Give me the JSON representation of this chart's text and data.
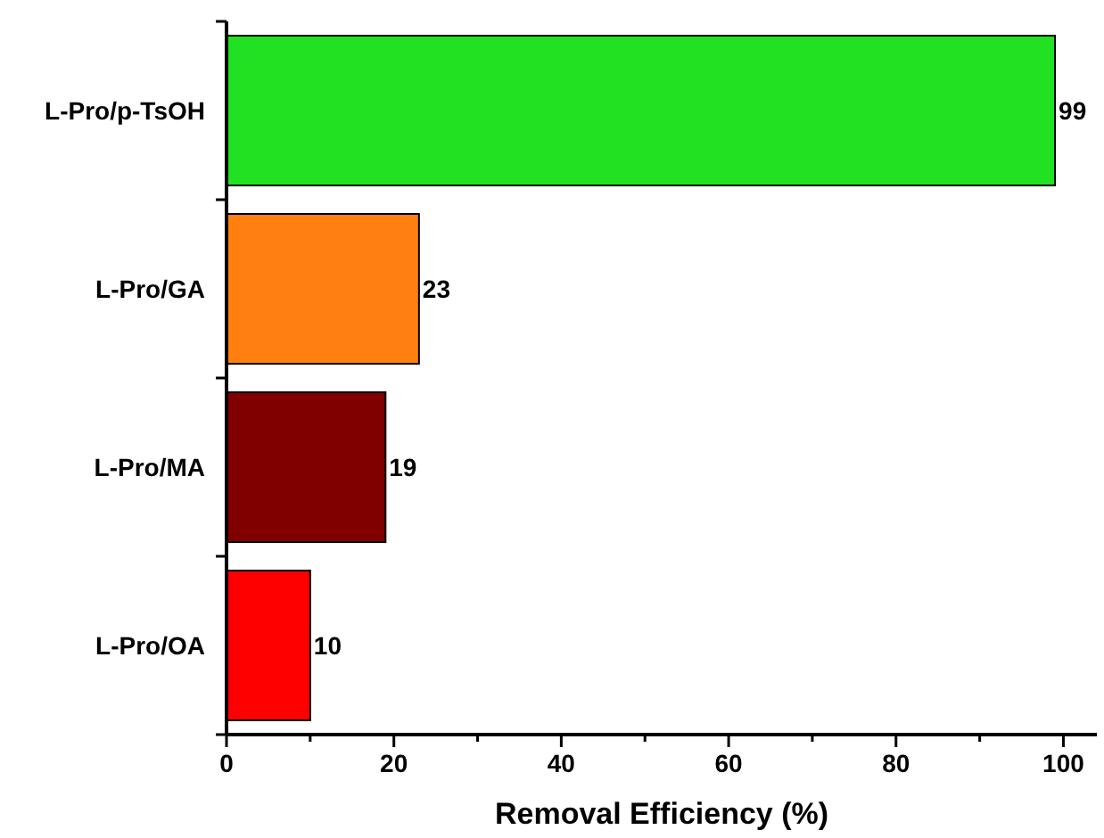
{
  "chart_data": {
    "type": "bar",
    "orientation": "horizontal",
    "xlabel": "Removal Efficiency (%)",
    "categories": [
      "L-Pro/p-TsOH",
      "L-Pro/GA",
      "L-Pro/MA",
      "L-Pro/OA"
    ],
    "values": [
      99,
      23,
      19,
      10
    ],
    "colors": [
      "#22e022",
      "#ff8010",
      "#800000",
      "#ff0000"
    ],
    "xlim": [
      0,
      104
    ],
    "xticks": [
      0,
      {
        "value": 10,
        "label": null
      },
      20,
      {
        "value": 30,
        "label": null
      },
      40,
      {
        "value": 50,
        "label": null
      },
      60,
      {
        "value": 70,
        "label": null
      },
      80,
      {
        "value": 90,
        "label": null
      },
      100
    ],
    "data_labels": true
  }
}
